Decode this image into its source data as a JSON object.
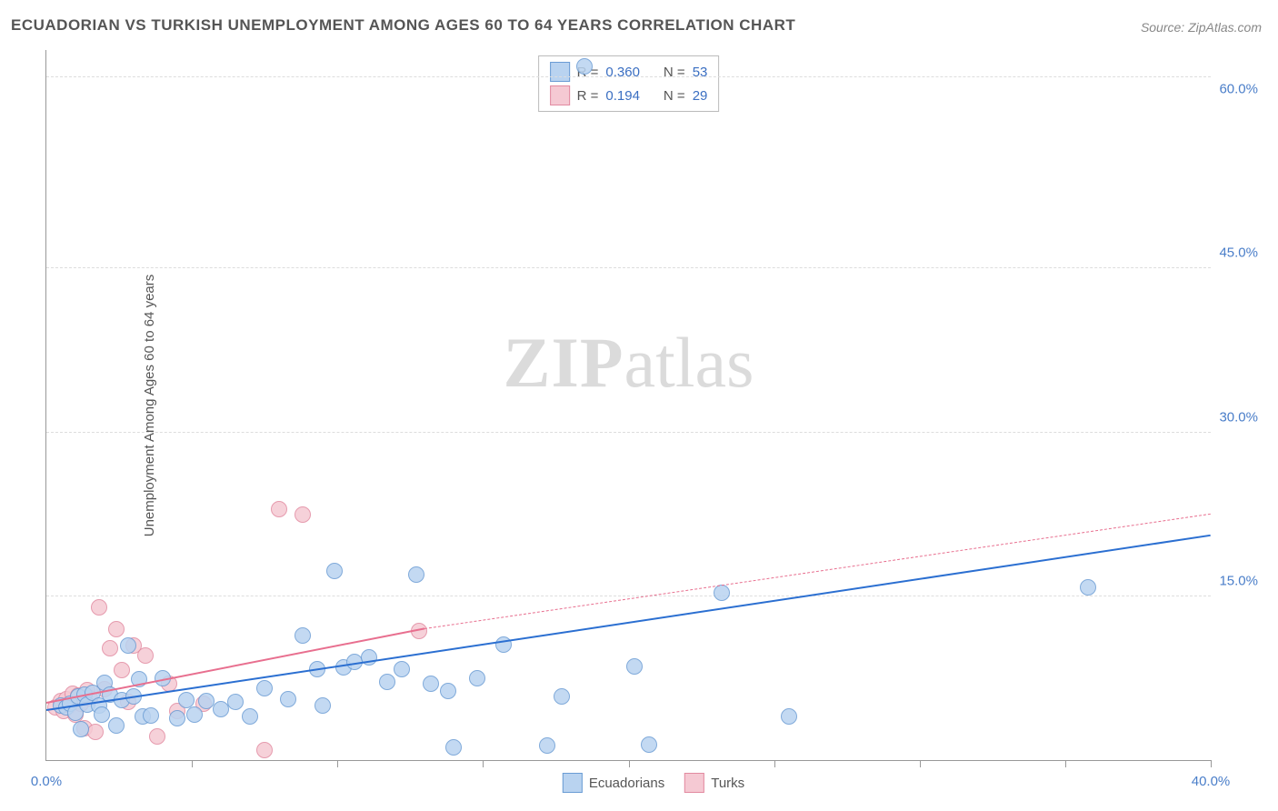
{
  "title": "ECUADORIAN VS TURKISH UNEMPLOYMENT AMONG AGES 60 TO 64 YEARS CORRELATION CHART",
  "source_label": "Source: ",
  "source_name": "ZipAtlas.com",
  "ylabel": "Unemployment Among Ages 60 to 64 years",
  "watermark_bold": "ZIP",
  "watermark_light": "atlas",
  "chart": {
    "type": "scatter",
    "xlim": [
      0,
      40
    ],
    "ylim": [
      0,
      65
    ],
    "background_color": "#ffffff",
    "grid_color": "#dddddd",
    "grid_style": "dashed",
    "axis_color": "#999999",
    "xtick_labels": [
      {
        "pos": 0,
        "text": "0.0%"
      },
      {
        "pos": 40,
        "text": "40.0%"
      }
    ],
    "xtick_marks": [
      5,
      10,
      15,
      20,
      25,
      30,
      35,
      40
    ],
    "ytick_labels": [
      {
        "pos": 15,
        "text": "15.0%"
      },
      {
        "pos": 30,
        "text": "30.0%"
      },
      {
        "pos": 45,
        "text": "45.0%"
      },
      {
        "pos": 60,
        "text": "60.0%"
      }
    ],
    "ygrid_positions": [
      15,
      30,
      45,
      62.5
    ],
    "label_color": "#4a7ec9",
    "label_fontsize": 15
  },
  "series": {
    "ecuadorians": {
      "label": "Ecuadorians",
      "marker_fill": "#b9d3f0",
      "marker_stroke": "#6a9cd4",
      "marker_radius": 9,
      "marker_opacity": 0.85,
      "trend_color": "#2b6fd1",
      "trend_width": 2.5,
      "trend_style": "solid",
      "trend_extrapolate_style": "dashed",
      "R": "0.360",
      "N": "53",
      "trend_start": {
        "x": 0,
        "y": 4.5
      },
      "trend_end": {
        "x": 40,
        "y": 20.5
      },
      "points": [
        [
          0.5,
          5.0
        ],
        [
          0.7,
          4.8
        ],
        [
          0.8,
          5.2
        ],
        [
          1.0,
          4.3
        ],
        [
          1.1,
          5.8
        ],
        [
          1.2,
          2.8
        ],
        [
          1.3,
          6.0
        ],
        [
          1.4,
          5.1
        ],
        [
          1.6,
          6.2
        ],
        [
          1.8,
          5.0
        ],
        [
          1.9,
          4.2
        ],
        [
          2.0,
          7.1
        ],
        [
          2.2,
          6.0
        ],
        [
          2.4,
          3.2
        ],
        [
          2.6,
          5.5
        ],
        [
          2.8,
          10.5
        ],
        [
          3.0,
          5.8
        ],
        [
          3.2,
          7.4
        ],
        [
          3.3,
          4.0
        ],
        [
          3.6,
          4.1
        ],
        [
          4.0,
          7.5
        ],
        [
          4.5,
          3.8
        ],
        [
          4.8,
          5.5
        ],
        [
          5.1,
          4.2
        ],
        [
          5.5,
          5.4
        ],
        [
          6.0,
          4.7
        ],
        [
          6.5,
          5.3
        ],
        [
          7.0,
          4.0
        ],
        [
          7.5,
          6.6
        ],
        [
          8.3,
          5.6
        ],
        [
          8.8,
          11.4
        ],
        [
          9.3,
          8.3
        ],
        [
          9.5,
          5.0
        ],
        [
          9.9,
          17.3
        ],
        [
          10.2,
          8.5
        ],
        [
          10.6,
          9.0
        ],
        [
          11.1,
          9.4
        ],
        [
          11.7,
          7.2
        ],
        [
          12.2,
          8.3
        ],
        [
          12.7,
          17.0
        ],
        [
          13.2,
          7.0
        ],
        [
          13.8,
          6.3
        ],
        [
          14.0,
          1.2
        ],
        [
          14.8,
          7.5
        ],
        [
          15.7,
          10.6
        ],
        [
          17.2,
          1.3
        ],
        [
          17.7,
          5.8
        ],
        [
          18.5,
          63.5
        ],
        [
          20.2,
          8.6
        ],
        [
          20.7,
          1.4
        ],
        [
          23.2,
          15.3
        ],
        [
          25.5,
          4.0
        ],
        [
          35.8,
          15.8
        ]
      ]
    },
    "turks": {
      "label": "Turks",
      "marker_fill": "#f5c9d3",
      "marker_stroke": "#e28aa0",
      "marker_radius": 9,
      "marker_opacity": 0.85,
      "trend_color": "#e86f8f",
      "trend_width": 2,
      "trend_style": "solid",
      "R": "0.194",
      "N": "29",
      "trend_start": {
        "x": 0,
        "y": 5.2
      },
      "trend_end": {
        "x": 13,
        "y": 12.0
      },
      "trend_extrapolate_end": {
        "x": 40,
        "y": 22.5
      },
      "points": [
        [
          0.3,
          4.8
        ],
        [
          0.5,
          5.4
        ],
        [
          0.6,
          4.5
        ],
        [
          0.7,
          5.6
        ],
        [
          0.8,
          5.0
        ],
        [
          0.9,
          6.1
        ],
        [
          1.0,
          4.2
        ],
        [
          1.1,
          5.9
        ],
        [
          1.2,
          5.2
        ],
        [
          1.3,
          2.9
        ],
        [
          1.4,
          6.4
        ],
        [
          1.5,
          5.7
        ],
        [
          1.7,
          2.6
        ],
        [
          1.8,
          14.0
        ],
        [
          2.0,
          6.5
        ],
        [
          2.2,
          10.2
        ],
        [
          2.4,
          12.0
        ],
        [
          2.6,
          8.2
        ],
        [
          2.8,
          5.3
        ],
        [
          3.0,
          10.5
        ],
        [
          3.4,
          9.6
        ],
        [
          3.8,
          2.2
        ],
        [
          4.2,
          7.0
        ],
        [
          4.5,
          4.5
        ],
        [
          5.4,
          5.2
        ],
        [
          7.5,
          0.9
        ],
        [
          8.0,
          23.0
        ],
        [
          8.8,
          22.5
        ],
        [
          12.8,
          11.8
        ]
      ]
    }
  },
  "stats_legend": {
    "R_label": "R =",
    "N_label": "N ="
  }
}
